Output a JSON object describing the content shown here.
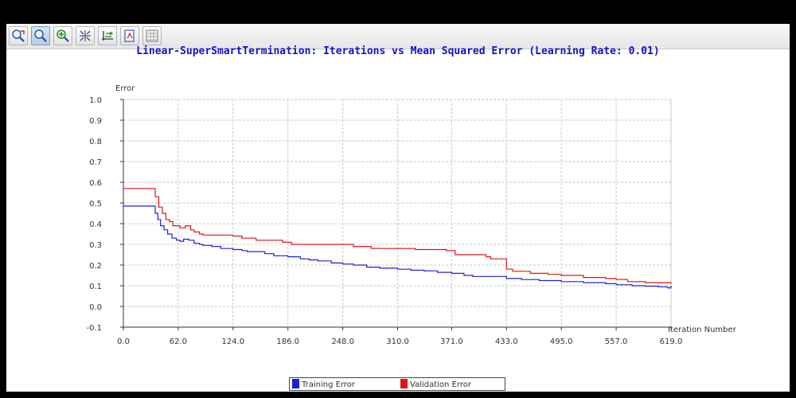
{
  "toolbar": {
    "tools": [
      {
        "icon": "zoom-reset-icon"
      },
      {
        "icon": "zoom-icon",
        "active": true
      },
      {
        "icon": "pan-icon"
      },
      {
        "icon": "fit-icon"
      },
      {
        "icon": "axis-settings-icon"
      },
      {
        "icon": "export-icon"
      },
      {
        "icon": "data-table-icon"
      }
    ]
  },
  "colors": {
    "title": "#1010cc",
    "training": "#2020d0",
    "validation": "#e01515",
    "grid": "#c8c8c8"
  },
  "chart_data": {
    "type": "line",
    "title": "Linear-SuperSmartTermination: Iterations vs Mean Squared Error (Learning Rate: 0.01)",
    "xlabel": "Iteration Number",
    "ylabel": "Error",
    "xlim": [
      0,
      619
    ],
    "ylim": [
      -0.1,
      1.0
    ],
    "x_ticks": [
      "0.0",
      "62.0",
      "124.0",
      "186.0",
      "248.0",
      "310.0",
      "371.0",
      "433.0",
      "495.0",
      "557.0",
      "619.0"
    ],
    "y_ticks": [
      "1.0",
      "0.9",
      "0.8",
      "0.7",
      "0.6",
      "0.5",
      "0.4",
      "0.3",
      "0.2",
      "0.1",
      "0.0",
      "-0.1"
    ],
    "grid": true,
    "legend_position": "bottom",
    "series": [
      {
        "name": "Training Error",
        "x": [
          0,
          33,
          36,
          39,
          42,
          46,
          50,
          55,
          60,
          64,
          68,
          74,
          80,
          86,
          90,
          100,
          110,
          124,
          134,
          140,
          150,
          160,
          170,
          186,
          200,
          210,
          220,
          235,
          248,
          260,
          275,
          290,
          310,
          325,
          340,
          355,
          371,
          385,
          395,
          410,
          433,
          450,
          470,
          495,
          520,
          545,
          557,
          575,
          590,
          605,
          615,
          619
        ],
        "values": [
          0.485,
          0.485,
          0.45,
          0.42,
          0.39,
          0.37,
          0.35,
          0.33,
          0.32,
          0.315,
          0.325,
          0.32,
          0.305,
          0.3,
          0.295,
          0.29,
          0.28,
          0.275,
          0.27,
          0.265,
          0.265,
          0.255,
          0.245,
          0.24,
          0.23,
          0.225,
          0.22,
          0.21,
          0.205,
          0.2,
          0.19,
          0.185,
          0.18,
          0.175,
          0.172,
          0.165,
          0.16,
          0.15,
          0.145,
          0.145,
          0.135,
          0.13,
          0.125,
          0.12,
          0.115,
          0.11,
          0.105,
          0.1,
          0.098,
          0.095,
          0.09,
          0.1
        ]
      },
      {
        "name": "Validation Error",
        "x": [
          0,
          33,
          36,
          40,
          44,
          48,
          52,
          56,
          60,
          64,
          70,
          76,
          80,
          86,
          90,
          100,
          124,
          134,
          150,
          180,
          190,
          250,
          260,
          280,
          330,
          365,
          375,
          410,
          415,
          433,
          440,
          460,
          480,
          495,
          520,
          545,
          557,
          570,
          590,
          619
        ],
        "values": [
          0.57,
          0.57,
          0.53,
          0.48,
          0.45,
          0.42,
          0.41,
          0.39,
          0.39,
          0.38,
          0.39,
          0.37,
          0.36,
          0.35,
          0.345,
          0.345,
          0.34,
          0.33,
          0.32,
          0.31,
          0.3,
          0.3,
          0.29,
          0.28,
          0.275,
          0.27,
          0.25,
          0.24,
          0.23,
          0.18,
          0.17,
          0.16,
          0.155,
          0.15,
          0.14,
          0.135,
          0.13,
          0.12,
          0.115,
          0.11
        ]
      }
    ]
  }
}
